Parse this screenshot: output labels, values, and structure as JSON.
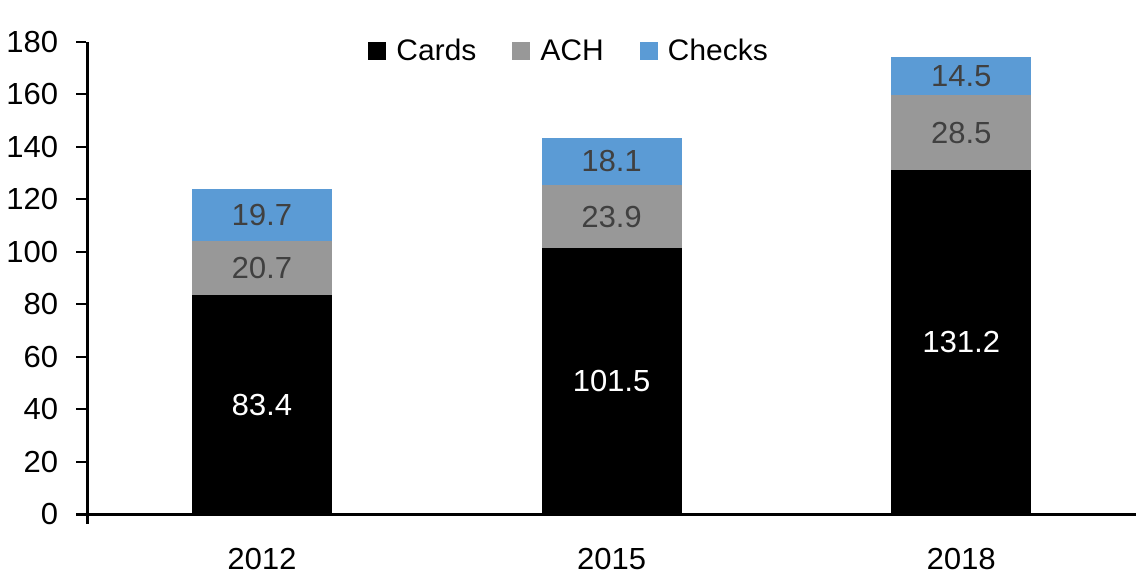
{
  "chart_data": {
    "type": "bar",
    "stacked": true,
    "title": "",
    "categories": [
      "2012",
      "2015",
      "2018"
    ],
    "series": [
      {
        "name": "Cards",
        "color": "#000000",
        "label_color": "#ffffff",
        "values": [
          83.4,
          101.5,
          131.2
        ]
      },
      {
        "name": "ACH",
        "color": "#989898",
        "label_color": "#404040",
        "values": [
          20.7,
          23.9,
          28.5
        ]
      },
      {
        "name": "Checks",
        "color": "#5B9BD5",
        "label_color": "#404040",
        "values": [
          19.7,
          18.1,
          14.5
        ]
      }
    ],
    "totals": [
      123.8,
      143.5,
      174.2
    ],
    "ylim": [
      0,
      180
    ],
    "yticks": [
      0,
      20,
      40,
      60,
      80,
      100,
      120,
      140,
      160,
      180
    ],
    "xlabel": "",
    "ylabel": "",
    "grid": false,
    "legend_position": "top",
    "legend_entries": [
      "Cards",
      "ACH",
      "Checks"
    ],
    "axis_color": "#000000",
    "background_color": "#ffffff"
  }
}
